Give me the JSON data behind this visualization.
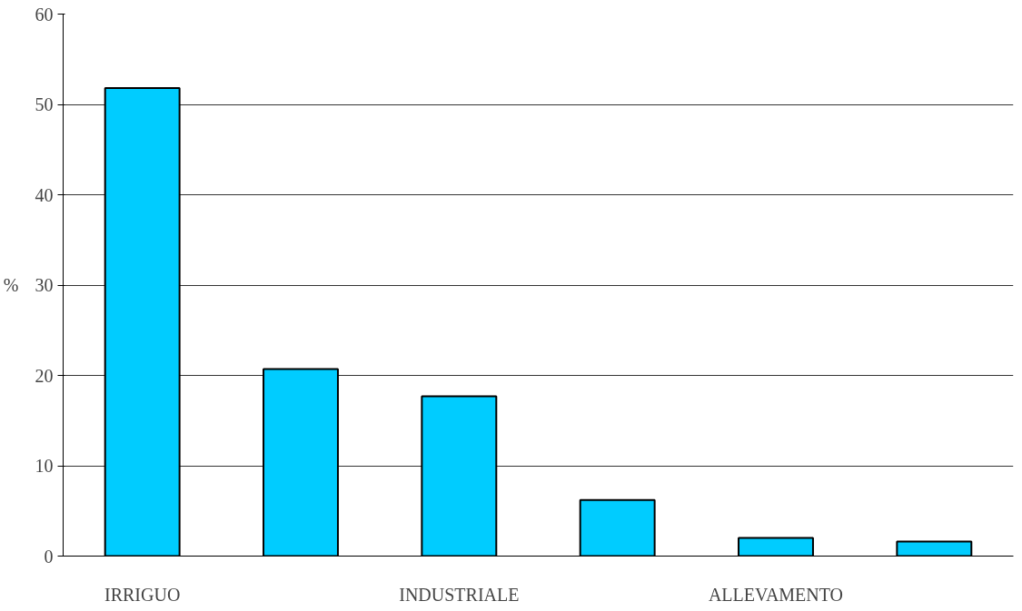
{
  "chart_data": {
    "type": "bar",
    "ylabel": "%",
    "categories": [
      "IRRIGUO",
      null,
      "INDUSTRIALE",
      null,
      "ALLEVAMENTO",
      null
    ],
    "values": [
      51.8,
      20.7,
      17.7,
      6.2,
      2.0,
      1.6
    ],
    "color": "#00ccff",
    "ylim": [
      0,
      60
    ],
    "yticks": [
      0,
      10,
      20,
      30,
      40,
      50,
      60
    ],
    "grid": "y"
  }
}
